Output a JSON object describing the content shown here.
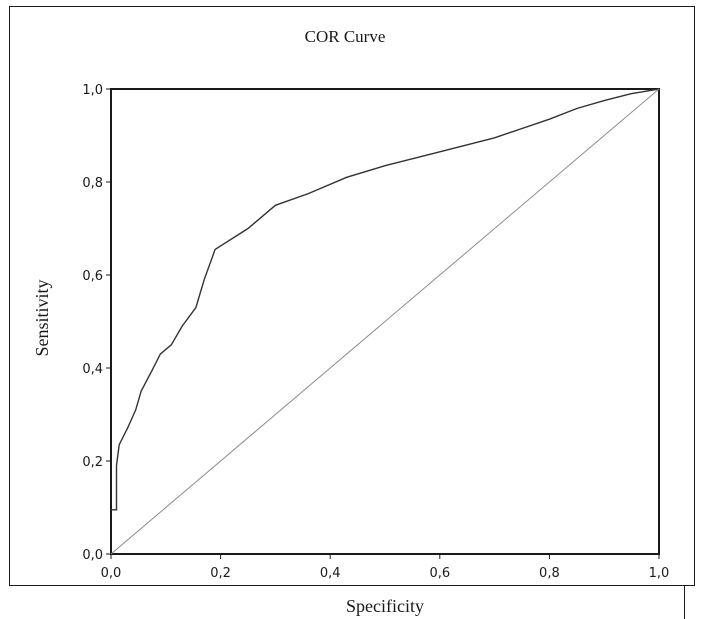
{
  "chart_data": {
    "type": "line",
    "title": "COR Curve",
    "xlabel": "Specificity",
    "ylabel": "Sensitivity",
    "xlim": [
      0,
      1
    ],
    "ylim": [
      0,
      1
    ],
    "xticks": [
      "0,0",
      "0,2",
      "0,4",
      "0,6",
      "0,8",
      "1,0"
    ],
    "yticks": [
      "0,0",
      "0,2",
      "0,4",
      "0,6",
      "0,8",
      "1,0"
    ],
    "grid": false,
    "series": [
      {
        "x": [
          0.0,
          0.01,
          0.01,
          0.015,
          0.03,
          0.045,
          0.055,
          0.075,
          0.09,
          0.11,
          0.13,
          0.155,
          0.17,
          0.19,
          0.25,
          0.3,
          0.36,
          0.43,
          0.5,
          0.6,
          0.7,
          0.75,
          0.8,
          0.85,
          0.9,
          0.95,
          1.0
        ],
        "y": [
          0.095,
          0.095,
          0.19,
          0.235,
          0.27,
          0.31,
          0.35,
          0.395,
          0.43,
          0.45,
          0.49,
          0.53,
          0.59,
          0.655,
          0.7,
          0.75,
          0.775,
          0.81,
          0.835,
          0.865,
          0.895,
          0.915,
          0.935,
          0.958,
          0.975,
          0.99,
          1.0
        ],
        "color": "#333333"
      },
      {
        "x": [
          0,
          1
        ],
        "y": [
          0,
          1
        ],
        "color": "#8c8c8c"
      }
    ]
  }
}
